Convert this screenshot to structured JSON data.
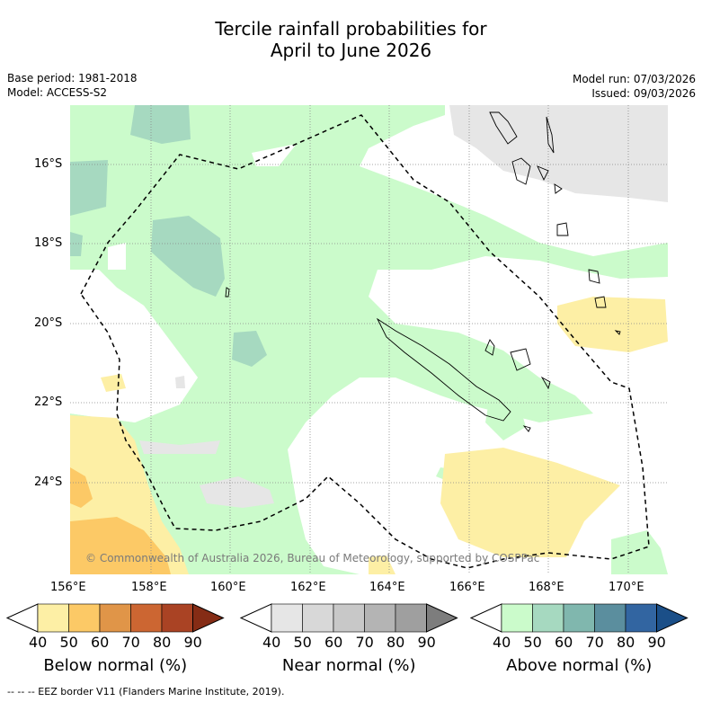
{
  "title": {
    "line1": "Tercile rainfall probabilities for",
    "line2": "April to June 2026"
  },
  "meta": {
    "base_period": "Base period: 1981-2018",
    "model": "Model: ACCESS-S2",
    "model_run": "Model run: 07/03/2026",
    "issued": "Issued: 09/03/2026"
  },
  "map": {
    "lat_labels": [
      "16°S",
      "18°S",
      "20°S",
      "22°S",
      "24°S"
    ],
    "lon_labels": [
      "156°E",
      "158°E",
      "160°E",
      "162°E",
      "164°E",
      "166°E",
      "168°E",
      "170°E"
    ],
    "copyright": "© Commonwealth of Australia 2026, Bureau of Meteorology, supported by COSPPac"
  },
  "colorbars": [
    {
      "label": "Below normal (%)",
      "ticks": [
        "40",
        "50",
        "60",
        "70",
        "80",
        "90"
      ],
      "colors": [
        "#ffffff",
        "#fdefa5",
        "#fcc966",
        "#e09548",
        "#cc6632",
        "#aa4324",
        "#852c15"
      ]
    },
    {
      "label": "Near normal (%)",
      "ticks": [
        "40",
        "50",
        "60",
        "70",
        "80",
        "90"
      ],
      "colors": [
        "#ffffff",
        "#e6e6e6",
        "#d8d8d8",
        "#c8c8c8",
        "#b4b4b4",
        "#9f9f9f",
        "#7d7d7d"
      ]
    },
    {
      "label": "Above normal (%)",
      "ticks": [
        "40",
        "50",
        "60",
        "70",
        "80",
        "90"
      ],
      "colors": [
        "#ffffff",
        "#cbfbcb",
        "#a6d9c0",
        "#80b7ae",
        "#5b8e9e",
        "#3265a1",
        "#1b4f88"
      ]
    }
  ],
  "footer": "--  --  -- EEZ border V11 (Flanders Marine Institute, 2019)."
}
